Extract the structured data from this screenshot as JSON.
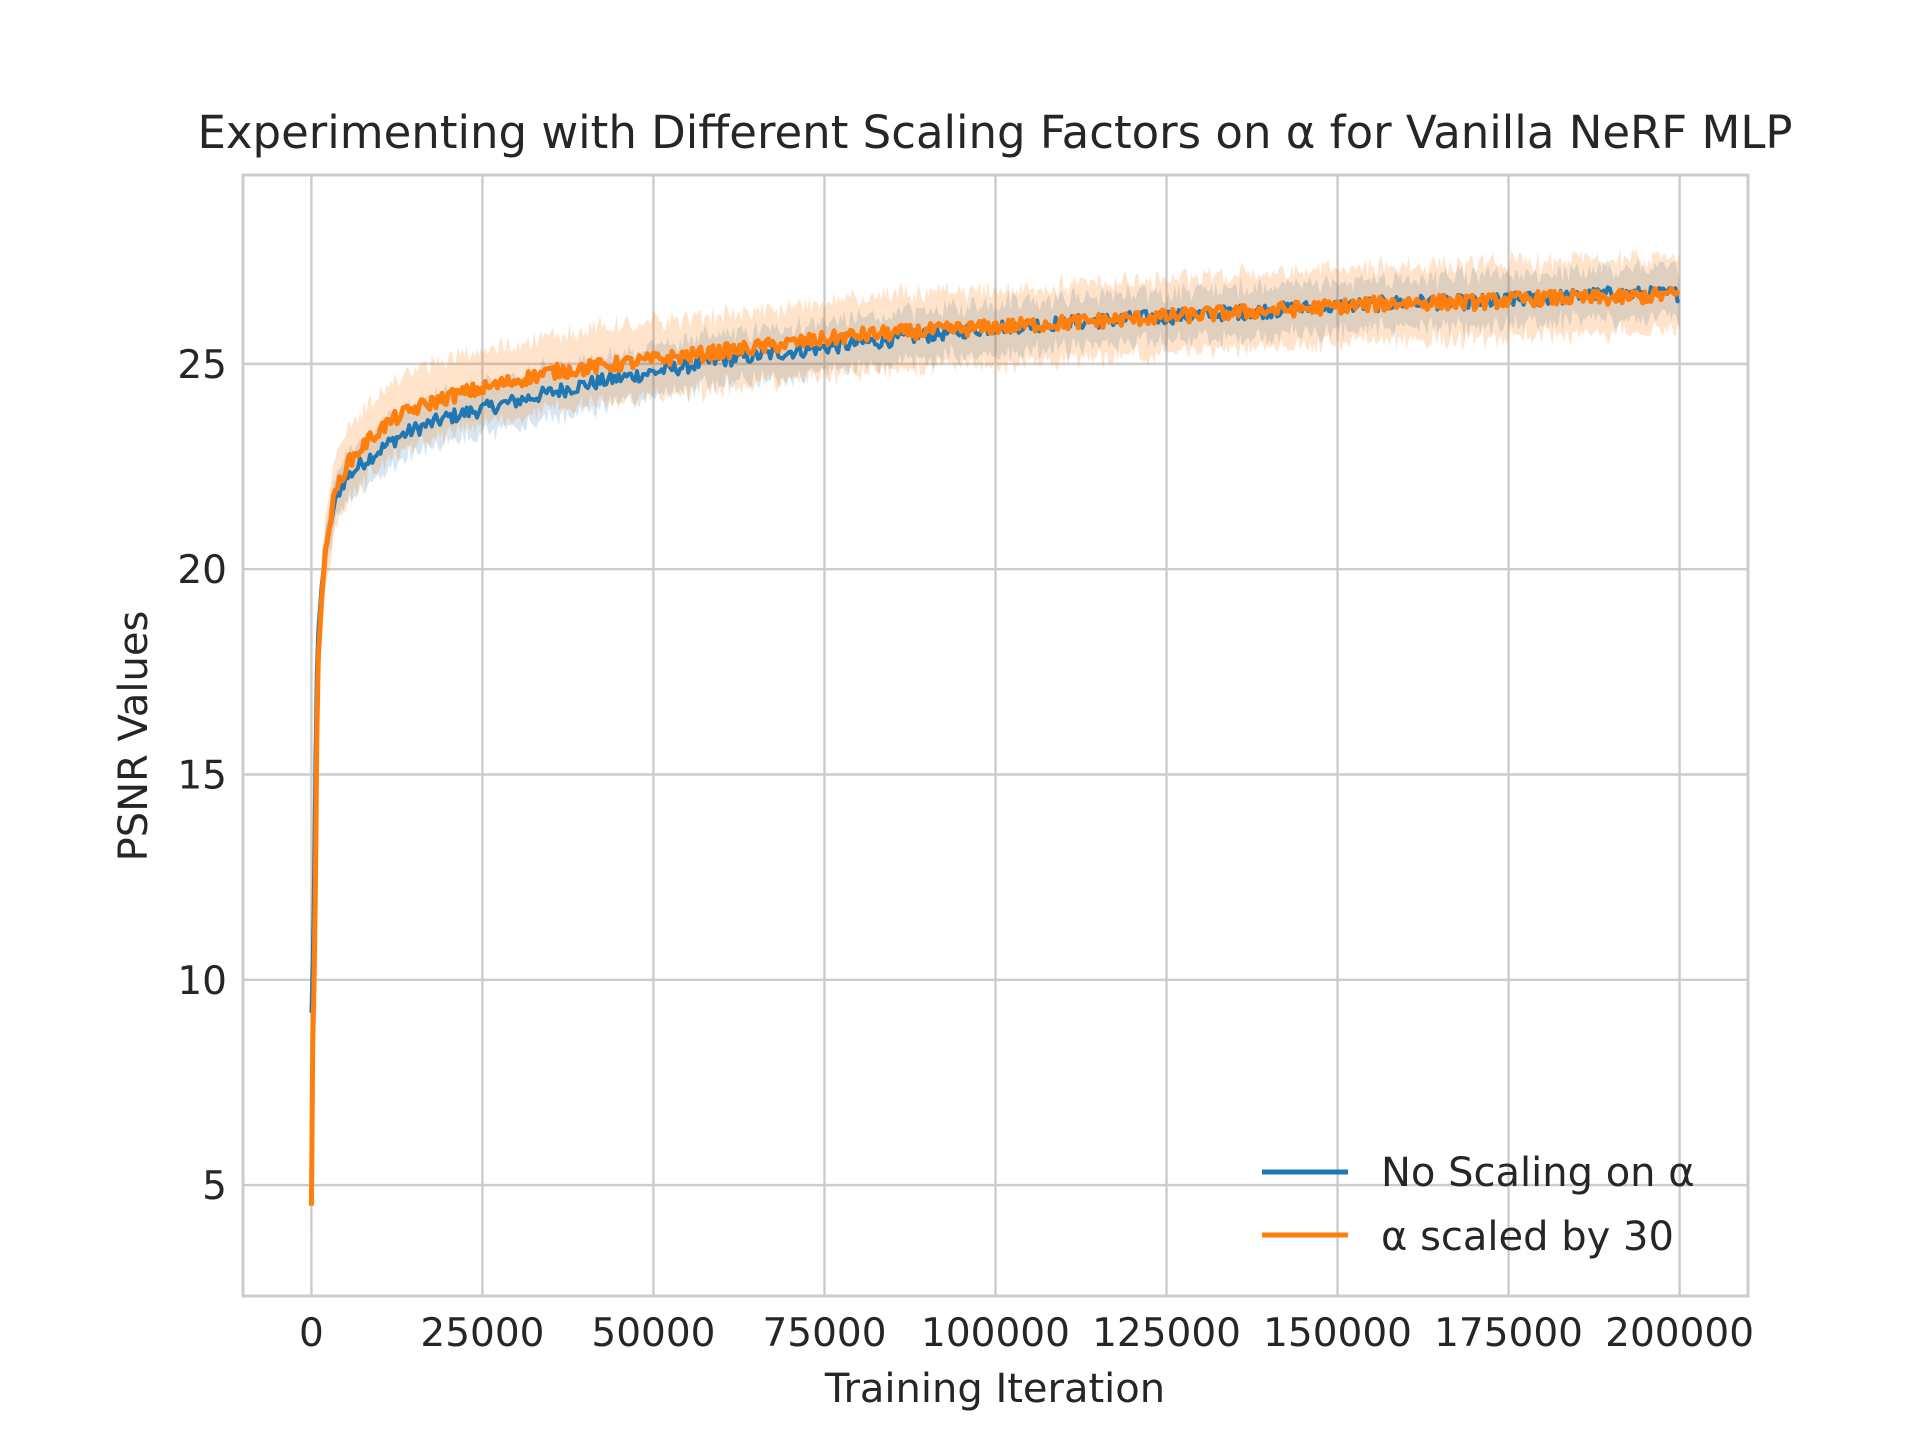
{
  "chart_data": {
    "type": "line",
    "title": "Experimenting with Different Scaling Factors on α for Vanilla NeRF MLP",
    "xlabel": "Training Iteration",
    "ylabel": "PSNR Values",
    "xlim": [
      -10000,
      210000
    ],
    "ylim": [
      2.3,
      29.6
    ],
    "xticks": [
      0,
      25000,
      50000,
      75000,
      100000,
      125000,
      150000,
      175000,
      200000
    ],
    "yticks": [
      5,
      10,
      15,
      20,
      25
    ],
    "grid": true,
    "legend_position": "lower right",
    "series": [
      {
        "name": "No Scaling on α",
        "color": "#1f77b4",
        "x": [
          0,
          200,
          400,
          600,
          800,
          1000,
          1500,
          2000,
          3000,
          4000,
          5000,
          7500,
          10000,
          12500,
          15000,
          20000,
          25000,
          30000,
          35000,
          40000,
          50000,
          60000,
          70000,
          80000,
          90000,
          100000,
          110000,
          120000,
          130000,
          140000,
          150000,
          160000,
          170000,
          180000,
          190000,
          200000
        ],
        "y": [
          9.2,
          10.5,
          12.5,
          15.5,
          17.5,
          18.5,
          19.6,
          20.3,
          21.3,
          21.9,
          22.2,
          22.6,
          22.9,
          23.2,
          23.4,
          23.7,
          23.9,
          24.1,
          24.3,
          24.5,
          24.8,
          25.1,
          25.3,
          25.5,
          25.7,
          25.9,
          26.0,
          26.1,
          26.2,
          26.3,
          26.4,
          26.5,
          26.5,
          26.6,
          26.7,
          26.7
        ],
        "band": 0.6
      },
      {
        "name": "α scaled by 30",
        "color": "#ff7f0e",
        "x": [
          0,
          200,
          400,
          600,
          800,
          1000,
          1500,
          2000,
          3000,
          4000,
          5000,
          7500,
          10000,
          12500,
          15000,
          20000,
          25000,
          30000,
          35000,
          40000,
          50000,
          60000,
          70000,
          80000,
          90000,
          100000,
          110000,
          120000,
          130000,
          140000,
          150000,
          160000,
          170000,
          180000,
          190000,
          200000
        ],
        "y": [
          4.5,
          8.5,
          10.0,
          12.5,
          16.0,
          17.8,
          19.3,
          20.3,
          21.5,
          22.1,
          22.5,
          23.0,
          23.4,
          23.7,
          23.9,
          24.2,
          24.4,
          24.6,
          24.8,
          24.9,
          25.1,
          25.3,
          25.5,
          25.7,
          25.8,
          25.9,
          26.0,
          26.1,
          26.2,
          26.3,
          26.4,
          26.5,
          26.5,
          26.6,
          26.6,
          26.7
        ],
        "band": 0.9
      }
    ]
  }
}
